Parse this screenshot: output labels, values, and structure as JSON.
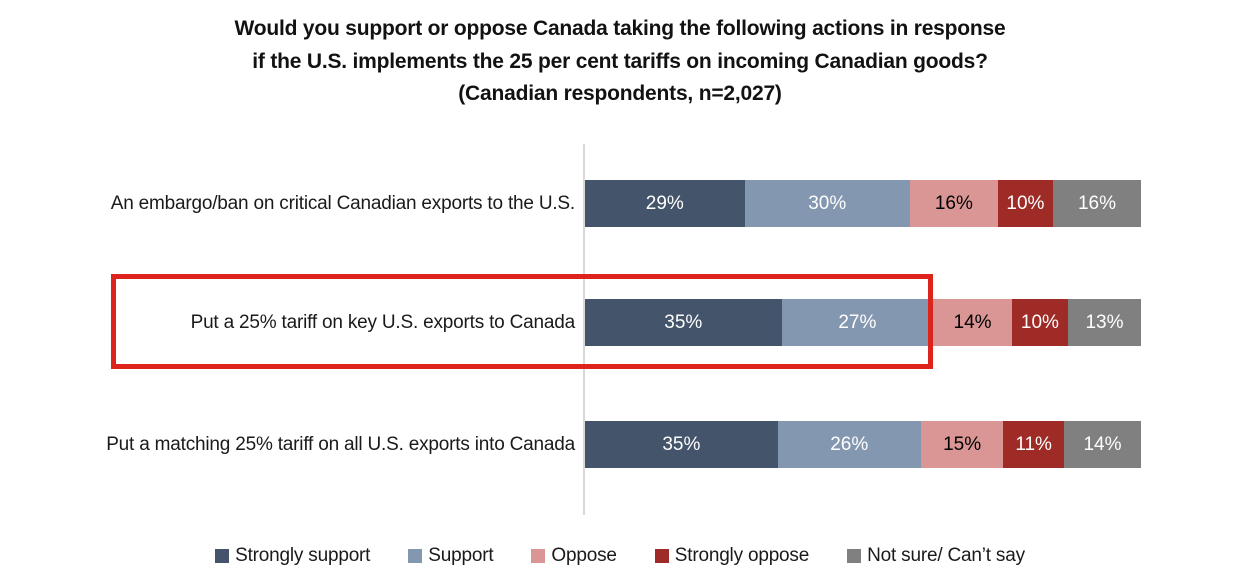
{
  "title": {
    "line1": "Would you support or oppose Canada taking the following actions in response",
    "line2": "if the U.S. implements the 25 per cent tariffs on incoming Canadian goods?",
    "line3": "(Canadian respondents, n=2,027)"
  },
  "chart_data": {
    "type": "bar",
    "orientation": "horizontal",
    "stacked": true,
    "stacked_to_100_percent": true,
    "grid": false,
    "legend_position": "bottom",
    "value_suffix": "%",
    "categories": [
      "An embargo/ban on critical Canadian exports to the U.S.",
      "Put a 25% tariff on key U.S. exports to Canada",
      "Put a matching 25% tariff on all U.S. exports into Canada"
    ],
    "series": [
      {
        "name": "Strongly support",
        "color": "#44546a",
        "text_color": "#ffffff",
        "values": [
          29,
          35,
          35
        ]
      },
      {
        "name": "Support",
        "color": "#8497b0",
        "text_color": "#ffffff",
        "values": [
          30,
          27,
          26
        ]
      },
      {
        "name": "Oppose",
        "color": "#d99694",
        "text_color": "#000000",
        "values": [
          16,
          14,
          15
        ]
      },
      {
        "name": "Strongly oppose",
        "color": "#9e2b25",
        "text_color": "#ffffff",
        "values": [
          10,
          10,
          11
        ]
      },
      {
        "name": "Not sure/ Can’t say",
        "color": "#808080",
        "text_color": "#ffffff",
        "values": [
          16,
          13,
          14
        ]
      }
    ],
    "highlighted_category_index": 1,
    "highlight_box_color": "#de221c",
    "axis_line_color": "#d9d9d9"
  }
}
